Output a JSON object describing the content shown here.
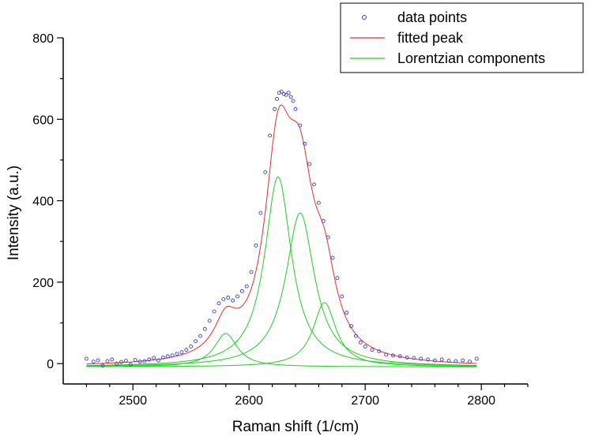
{
  "chart_data": {
    "type": "scatter",
    "title": "",
    "xlabel": "Raman shift (1/cm)",
    "ylabel": "Intensity (a.u.)",
    "xlim": [
      2440,
      2840
    ],
    "ylim": [
      -50,
      800
    ],
    "xticks": [
      2500,
      2600,
      2700,
      2800
    ],
    "yticks": [
      0,
      200,
      400,
      600,
      800
    ],
    "legend_position": "top-right",
    "colors": {
      "data_points": "#3b3bd6",
      "fitted_peak": "#e03030",
      "lorentzian": "#22cc22",
      "axis": "#000000"
    },
    "series": [
      {
        "name": "data points",
        "kind": "scatter",
        "x": [
          2460,
          2466,
          2470,
          2474,
          2478,
          2482,
          2486,
          2490,
          2494,
          2498,
          2502,
          2506,
          2510,
          2514,
          2518,
          2522,
          2526,
          2530,
          2534,
          2538,
          2542,
          2546,
          2550,
          2554,
          2558,
          2562,
          2566,
          2570,
          2574,
          2578,
          2582,
          2586,
          2590,
          2594,
          2598,
          2602,
          2606,
          2610,
          2614,
          2618,
          2622,
          2624,
          2626,
          2628,
          2630,
          2632,
          2634,
          2636,
          2638,
          2640,
          2644,
          2648,
          2652,
          2656,
          2660,
          2664,
          2668,
          2672,
          2676,
          2680,
          2684,
          2688,
          2692,
          2696,
          2700,
          2706,
          2712,
          2718,
          2724,
          2730,
          2736,
          2742,
          2748,
          2754,
          2760,
          2766,
          2772,
          2778,
          2784,
          2790,
          2796
        ],
        "y": [
          12,
          5,
          8,
          -5,
          6,
          10,
          0,
          4,
          7,
          -2,
          9,
          5,
          6,
          10,
          14,
          8,
          15,
          18,
          20,
          24,
          28,
          34,
          42,
          55,
          68,
          85,
          105,
          128,
          148,
          158,
          162,
          155,
          165,
          178,
          190,
          225,
          290,
          370,
          470,
          560,
          625,
          650,
          665,
          668,
          662,
          660,
          665,
          655,
          645,
          625,
          585,
          540,
          490,
          440,
          395,
          350,
          310,
          260,
          210,
          165,
          125,
          92,
          68,
          52,
          42,
          34,
          30,
          22,
          20,
          18,
          15,
          14,
          12,
          10,
          8,
          10,
          7,
          6,
          8,
          5,
          12
        ]
      },
      {
        "name": "fitted peak",
        "kind": "line",
        "components": [
          {
            "center": 2580,
            "height": 82,
            "hwhm": 12
          },
          {
            "center": 2625,
            "height": 467,
            "hwhm": 14
          },
          {
            "center": 2644,
            "height": 378,
            "hwhm": 15
          },
          {
            "center": 2665,
            "height": 158,
            "hwhm": 12
          }
        ],
        "x_range": [
          2460,
          2796
        ],
        "y_offset": -8
      },
      {
        "name": "Lorentzian components",
        "kind": "line",
        "components": [
          {
            "center": 2580,
            "height": 82,
            "hwhm": 12
          },
          {
            "center": 2625,
            "height": 467,
            "hwhm": 14
          },
          {
            "center": 2644,
            "height": 378,
            "hwhm": 15
          },
          {
            "center": 2665,
            "height": 158,
            "hwhm": 12
          }
        ],
        "x_range": [
          2460,
          2796
        ],
        "y_offset": -8
      }
    ]
  }
}
